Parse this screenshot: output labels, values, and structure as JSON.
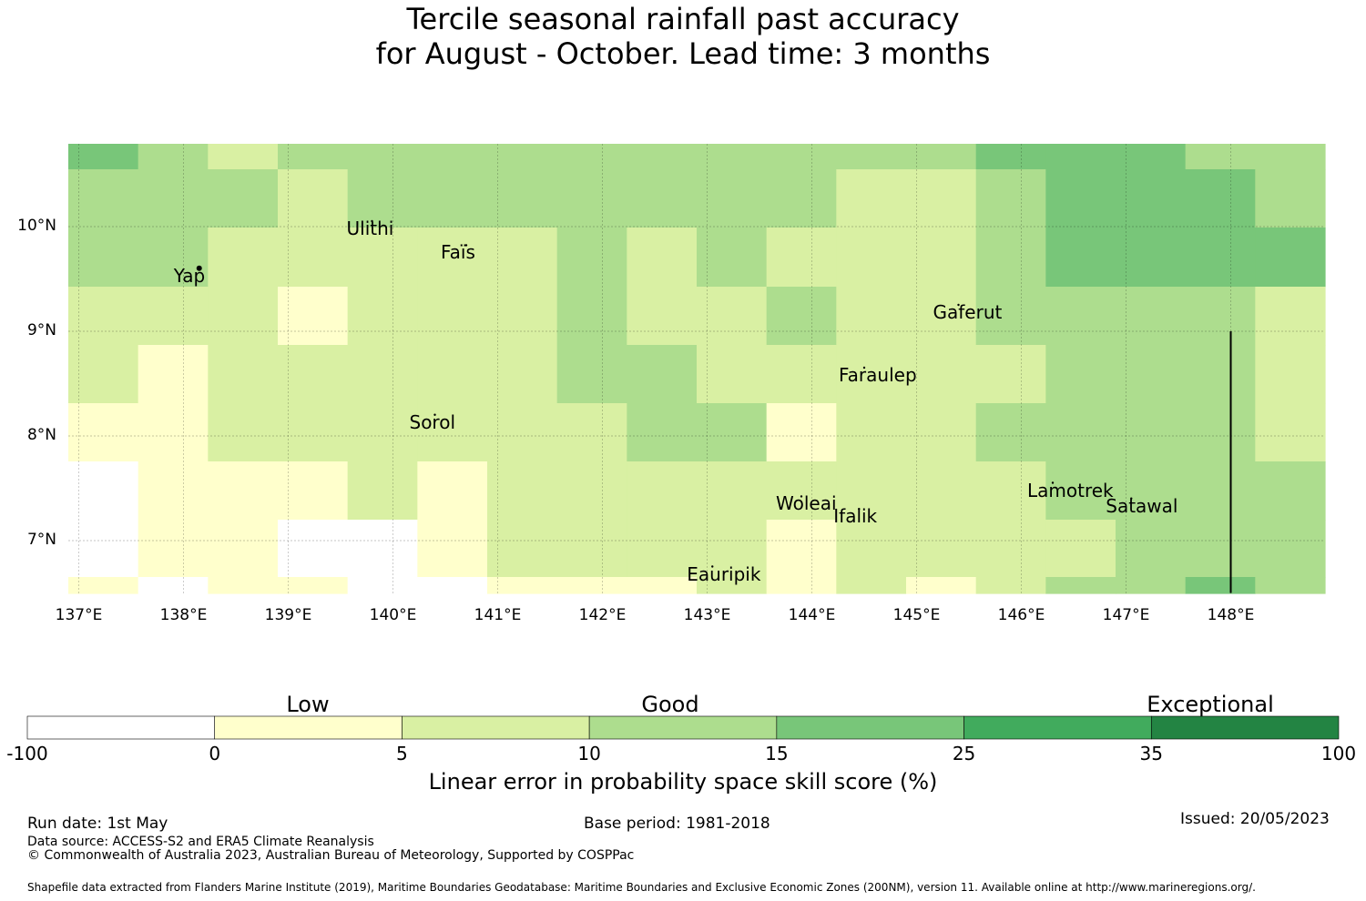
{
  "title_line1": "Tercile seasonal rainfall past accuracy",
  "title_line2": "for August - October. Lead time: 3 months",
  "map": {
    "lon_range": [
      137,
      149
    ],
    "lat_range": [
      6.5,
      10.8
    ],
    "lon_ticks": [
      137,
      138,
      139,
      140,
      141,
      142,
      143,
      144,
      145,
      146,
      147,
      148
    ],
    "lat_ticks": [
      7,
      8,
      9,
      10
    ],
    "lon_tick_labels": [
      "137°E",
      "138°E",
      "139°E",
      "140°E",
      "141°E",
      "142°E",
      "143°E",
      "144°E",
      "145°E",
      "146°E",
      "147°E",
      "148°E"
    ],
    "lat_tick_labels": [
      "7°N",
      "8°N",
      "9°N",
      "10°N"
    ],
    "grid": true,
    "cell_rows": [
      [
        3,
        2,
        1,
        2,
        2,
        2,
        2,
        2,
        2,
        2,
        2,
        2,
        2,
        3,
        3,
        3,
        2,
        2
      ],
      [
        2,
        2,
        2,
        1,
        2,
        2,
        2,
        2,
        2,
        2,
        2,
        1,
        1,
        2,
        3,
        3,
        3,
        2
      ],
      [
        2,
        2,
        1,
        1,
        1,
        1,
        1,
        2,
        1,
        2,
        1,
        1,
        1,
        2,
        3,
        3,
        3,
        3
      ],
      [
        1,
        1,
        1,
        0,
        1,
        1,
        1,
        2,
        1,
        1,
        2,
        1,
        1,
        2,
        2,
        2,
        2,
        1
      ],
      [
        1,
        0,
        1,
        1,
        1,
        1,
        1,
        2,
        2,
        1,
        1,
        1,
        1,
        1,
        2,
        2,
        2,
        1
      ],
      [
        0,
        0,
        1,
        1,
        1,
        1,
        1,
        1,
        2,
        2,
        0,
        1,
        1,
        2,
        2,
        2,
        2,
        1
      ],
      [
        -1,
        0,
        0,
        0,
        1,
        0,
        1,
        1,
        1,
        1,
        1,
        1,
        1,
        1,
        2,
        2,
        2,
        2
      ],
      [
        -1,
        0,
        0,
        -1,
        -1,
        0,
        1,
        1,
        1,
        1,
        0,
        1,
        1,
        1,
        1,
        2,
        2,
        2
      ],
      [
        0,
        -1,
        0,
        0,
        -1,
        -1,
        0,
        0,
        0,
        1,
        0,
        1,
        0,
        1,
        2,
        2,
        3,
        2
      ]
    ],
    "places": [
      {
        "name": "Ulithi",
        "lon": 139.8,
        "lat": 10.0
      },
      {
        "name": "Faïs",
        "lon": 140.7,
        "lat": 9.77
      },
      {
        "name": "Yap",
        "lon": 138.15,
        "lat": 9.55
      },
      {
        "name": "Gaferut",
        "lon": 145.4,
        "lat": 9.2
      },
      {
        "name": "Faraulep",
        "lon": 144.5,
        "lat": 8.6
      },
      {
        "name": "Sorol",
        "lon": 140.4,
        "lat": 8.15
      },
      {
        "name": "Woleai",
        "lon": 143.9,
        "lat": 7.37
      },
      {
        "name": "Ifalik",
        "lon": 144.45,
        "lat": 7.25
      },
      {
        "name": "Lamotrek",
        "lon": 146.3,
        "lat": 7.5
      },
      {
        "name": "Satawal",
        "lon": 147.05,
        "lat": 7.35
      },
      {
        "name": "Eauripik",
        "lon": 143.05,
        "lat": 6.7
      }
    ],
    "boundary_line": {
      "lon": 148.0,
      "lat_from": 6.5,
      "lat_to": 9.0
    }
  },
  "colorbar": {
    "ticks": [
      "-100",
      "0",
      "5",
      "10",
      "15",
      "25",
      "35",
      "100"
    ],
    "colors": [
      "#ffffff",
      "#ffffcc",
      "#d9f0a3",
      "#addd8e",
      "#78c679",
      "#41ab5d",
      "#238443"
    ],
    "categories": [
      "Low",
      "Good",
      "Exceptional"
    ],
    "label": "Linear error in probability space skill score (%)"
  },
  "footer": {
    "run_date": "Run date: 1st May",
    "base_period": "Base period: 1981-2018",
    "issued": "Issued: 20/05/2023",
    "data_source": "Data source: ACCESS-S2 and ERA5 Climate Reanalysis",
    "copyright": "© Commonwealth of Australia 2023, Australian Bureau of Meteorology, Supported by COSPPac",
    "shapefile": "Shapefile data extracted from Flanders Marine Institute (2019), Maritime Boundaries Geodatabase: Maritime Boundaries and Exclusive Economic Zones (200NM), version 11. Available online at http://www.marineregions.org/."
  }
}
